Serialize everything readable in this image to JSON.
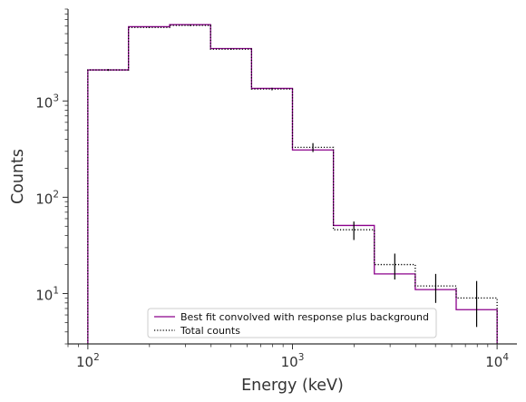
{
  "chart_data": {
    "type": "line",
    "title": "",
    "xlabel": "Energy (keV)",
    "ylabel": "Counts",
    "xscale": "log",
    "yscale": "log",
    "xlim": [
      80,
      12500
    ],
    "ylim": [
      3,
      9000
    ],
    "grid": false,
    "legend_position": "bottom-center",
    "x_ticks": [
      {
        "value": 100,
        "base": "10",
        "exp": "2"
      },
      {
        "value": 1000,
        "base": "10",
        "exp": "3"
      },
      {
        "value": 10000,
        "base": "10",
        "exp": "4"
      }
    ],
    "y_ticks": [
      {
        "value": 10,
        "base": "10",
        "exp": "1"
      },
      {
        "value": 100,
        "base": "10",
        "exp": "2"
      },
      {
        "value": 1000,
        "base": "10",
        "exp": "3"
      }
    ],
    "bin_edges": [
      100,
      158,
      251,
      398,
      631,
      1000,
      1585,
      2512,
      3981,
      6310,
      10000
    ],
    "series": [
      {
        "name": "Best fit convolved with response plus background",
        "style": "solid",
        "color": "#8b008b",
        "values": [
          2100,
          5900,
          6200,
          3500,
          1350,
          310,
          51,
          16,
          11,
          6.8
        ]
      },
      {
        "name": "Total counts",
        "style": "dotted",
        "color": "#000000",
        "values": [
          2100,
          5800,
          6100,
          3450,
          1330,
          330,
          46,
          20,
          12,
          9
        ],
        "errors": [
          50,
          80,
          80,
          60,
          40,
          35,
          10,
          6,
          4,
          4.5
        ]
      }
    ]
  }
}
